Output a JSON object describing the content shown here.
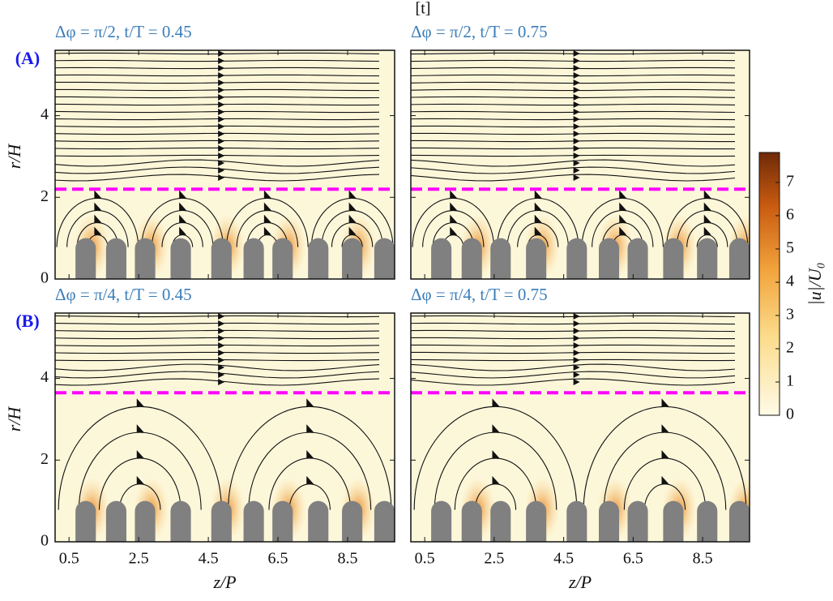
{
  "caption": "[t]",
  "panel_labels": [
    "(A)",
    "(B)"
  ],
  "chart_data": [
    {
      "type": "streamline",
      "title": "Δφ = π/2, t/T = 0.45",
      "y_label": "r/H",
      "show_xtick_labels": false,
      "xlim": [
        0.1,
        9.85
      ],
      "ylim": [
        0,
        5.6
      ],
      "xticks": [
        0.5,
        2.5,
        4.5,
        6.5,
        8.5
      ],
      "yticks": [
        0,
        2,
        4
      ],
      "dashed_line_y": 2.2,
      "dashed_color": "#ff00ff"
    },
    {
      "type": "streamline",
      "title": "Δφ = π/2, t/T = 0.75",
      "show_xtick_labels": false,
      "xlim": [
        0.1,
        9.85
      ],
      "ylim": [
        0,
        5.6
      ],
      "xticks": [
        0.5,
        2.5,
        4.5,
        6.5,
        8.5
      ],
      "yticks": [
        0,
        2,
        4
      ],
      "dashed_line_y": 2.2,
      "dashed_color": "#ff00ff"
    },
    {
      "type": "streamline",
      "title": "Δφ = π/4, t/T = 0.45",
      "y_label": "r/H",
      "x_label": "z/P",
      "show_xtick_labels": true,
      "xlim": [
        0.1,
        9.85
      ],
      "ylim": [
        0,
        5.6
      ],
      "xticks": [
        0.5,
        2.5,
        4.5,
        6.5,
        8.5
      ],
      "yticks": [
        0,
        2,
        4
      ],
      "dashed_line_y": 3.65,
      "dashed_color": "#ff00ff"
    },
    {
      "type": "streamline",
      "title": "Δφ = π/4, t/T = 0.75",
      "x_label": "z/P",
      "show_xtick_labels": true,
      "xlim": [
        0.1,
        9.85
      ],
      "ylim": [
        0,
        5.6
      ],
      "xticks": [
        0.5,
        2.5,
        4.5,
        6.5,
        8.5
      ],
      "yticks": [
        0,
        2,
        4
      ],
      "dashed_line_y": 3.65,
      "dashed_color": "#ff00ff"
    },
    {
      "type": "colorbar",
      "y_label": "|u|/U₀",
      "ylim": [
        0,
        7.9
      ],
      "yticks": [
        0,
        1,
        2,
        3,
        4,
        5,
        6,
        7
      ]
    }
  ]
}
